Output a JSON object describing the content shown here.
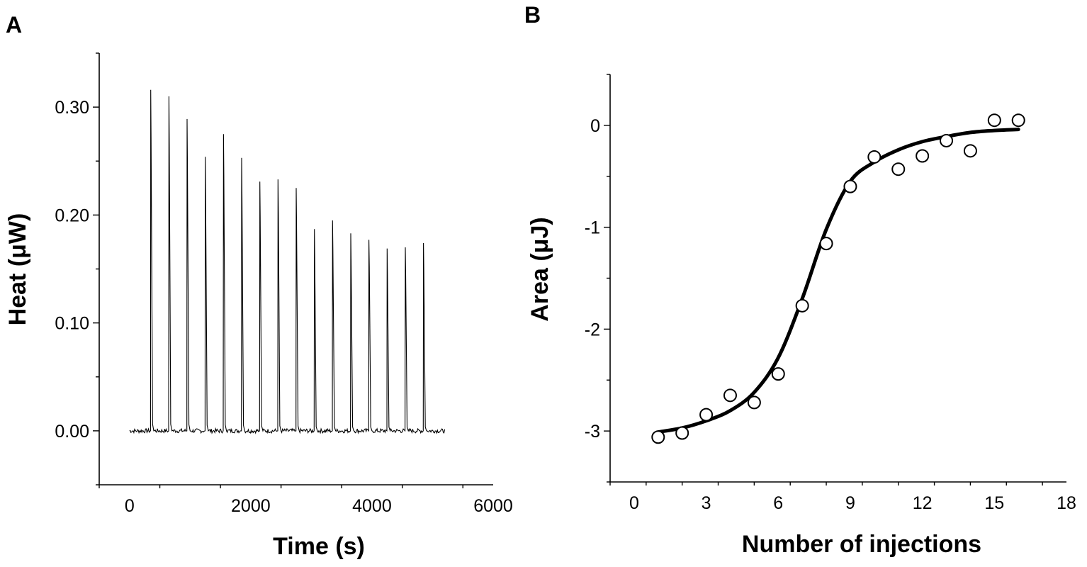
{
  "chart_data": [
    {
      "panel": "A",
      "type": "line",
      "xlabel": "Time (s)",
      "ylabel": "Heat (μW)",
      "xlim": [
        -500,
        6000
      ],
      "ylim": [
        -0.05,
        0.35
      ],
      "xticks": [
        0,
        2000,
        4000,
        6000
      ],
      "xtick_labels": [
        "0",
        "2000",
        "4000",
        "6000"
      ],
      "yticks": [
        0.0,
        0.1,
        0.2,
        0.3
      ],
      "ytick_labels": [
        "0.00",
        "0.10",
        "0.20",
        "0.30"
      ],
      "line_color": "#000000",
      "series": [
        {
          "baseline": 0.0,
          "x_start": 0,
          "x_end": 5200,
          "peak_x": [
            350,
            650,
            950,
            1250,
            1550,
            1850,
            2150,
            2450,
            2750,
            3050,
            3350,
            3650,
            3950,
            4250,
            4550,
            4850
          ],
          "peak_y": [
            0.316,
            0.31,
            0.289,
            0.254,
            0.275,
            0.253,
            0.231,
            0.233,
            0.225,
            0.187,
            0.195,
            0.183,
            0.177,
            0.169,
            0.17,
            0.174
          ]
        }
      ]
    },
    {
      "panel": "B",
      "type": "scatter",
      "xlabel": "Number of injections",
      "ylabel": "Area (μJ)",
      "xlim": [
        -1,
        18
      ],
      "ylim": [
        -3.5,
        0.5
      ],
      "xticks": [
        0,
        3,
        6,
        9,
        12,
        15,
        18
      ],
      "xtick_labels": [
        "0",
        "3",
        "6",
        "9",
        "12",
        "15",
        "18"
      ],
      "yticks": [
        0,
        -1,
        -2,
        -3
      ],
      "ytick_labels": [
        "0",
        "-1",
        "-2",
        "-3"
      ],
      "marker_fill": "#ffffff",
      "marker_edge": "#000000",
      "fit_color": "#000000",
      "series": [
        {
          "x": [
            1,
            2,
            3,
            4,
            5,
            6,
            7,
            8,
            9,
            10,
            11,
            12,
            13,
            14,
            15,
            16
          ],
          "y": [
            -3.06,
            -3.02,
            -2.84,
            -2.65,
            -2.72,
            -2.44,
            -1.77,
            -1.16,
            -0.6,
            -0.31,
            -0.43,
            -0.3,
            -0.15,
            -0.25,
            0.05,
            0.05
          ]
        }
      ],
      "fit": {
        "x": [
          1,
          2,
          3,
          4,
          5,
          6,
          7,
          8,
          9,
          10,
          11,
          12,
          13,
          14,
          15,
          16
        ],
        "y": [
          -3.01,
          -2.97,
          -2.9,
          -2.8,
          -2.62,
          -2.28,
          -1.7,
          -1.02,
          -0.55,
          -0.36,
          -0.24,
          -0.16,
          -0.11,
          -0.07,
          -0.05,
          -0.04
        ]
      }
    }
  ]
}
